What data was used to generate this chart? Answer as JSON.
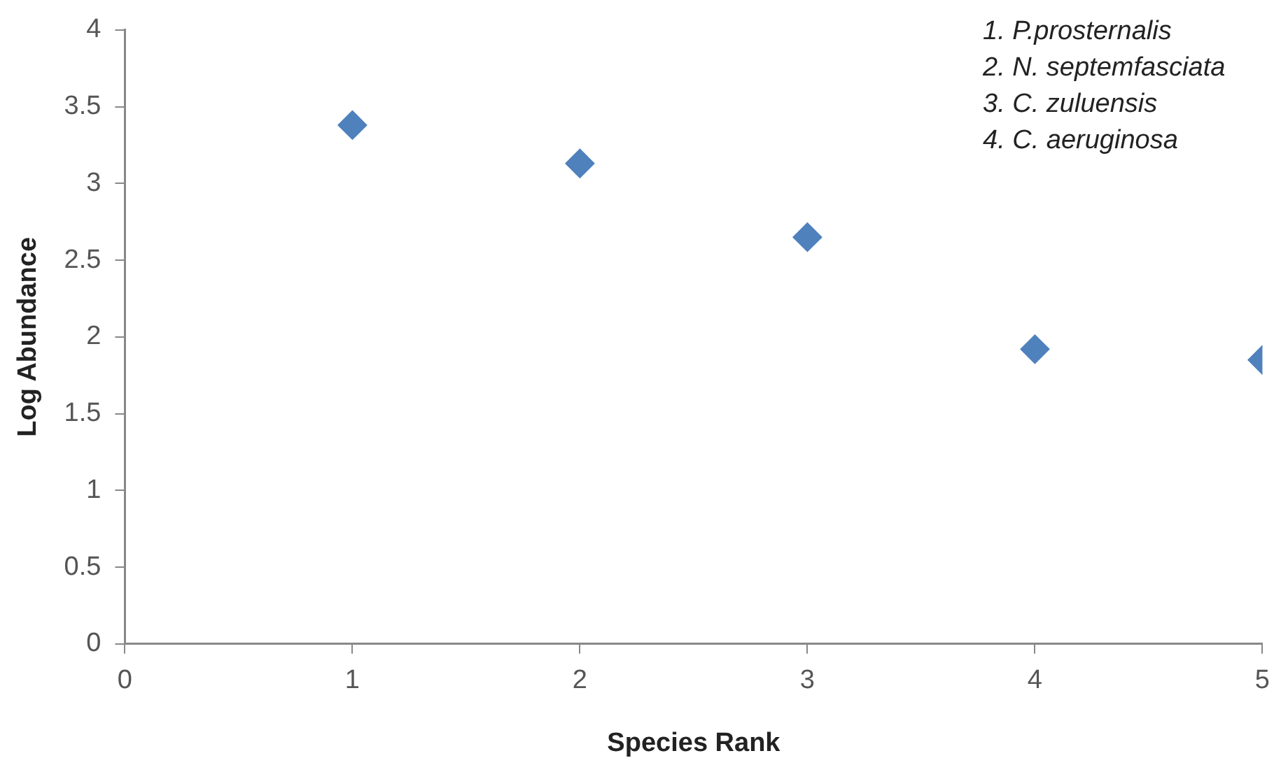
{
  "chart_data": {
    "type": "scatter",
    "xlabel": "Species Rank",
    "ylabel": "Log Abundance",
    "x": [
      1,
      2,
      3,
      4,
      5
    ],
    "series": [
      {
        "color": "#4f81bd",
        "values": [
          3.38,
          3.13,
          2.65,
          1.92,
          1.85
        ]
      }
    ],
    "xlim": [
      0,
      5
    ],
    "xticks": [
      0,
      1,
      2,
      3,
      4,
      5
    ],
    "ylim": [
      0,
      4
    ],
    "yticks": [
      0,
      0.5,
      1,
      1.5,
      2,
      2.5,
      3,
      3.5,
      4
    ],
    "grid": false,
    "legend": false,
    "marker": "diamond",
    "annotations": [
      "1. P.prosternalis",
      "2. N. septemfasciata",
      "3. C. zuluensis",
      "4. C. aeruginosa"
    ]
  }
}
